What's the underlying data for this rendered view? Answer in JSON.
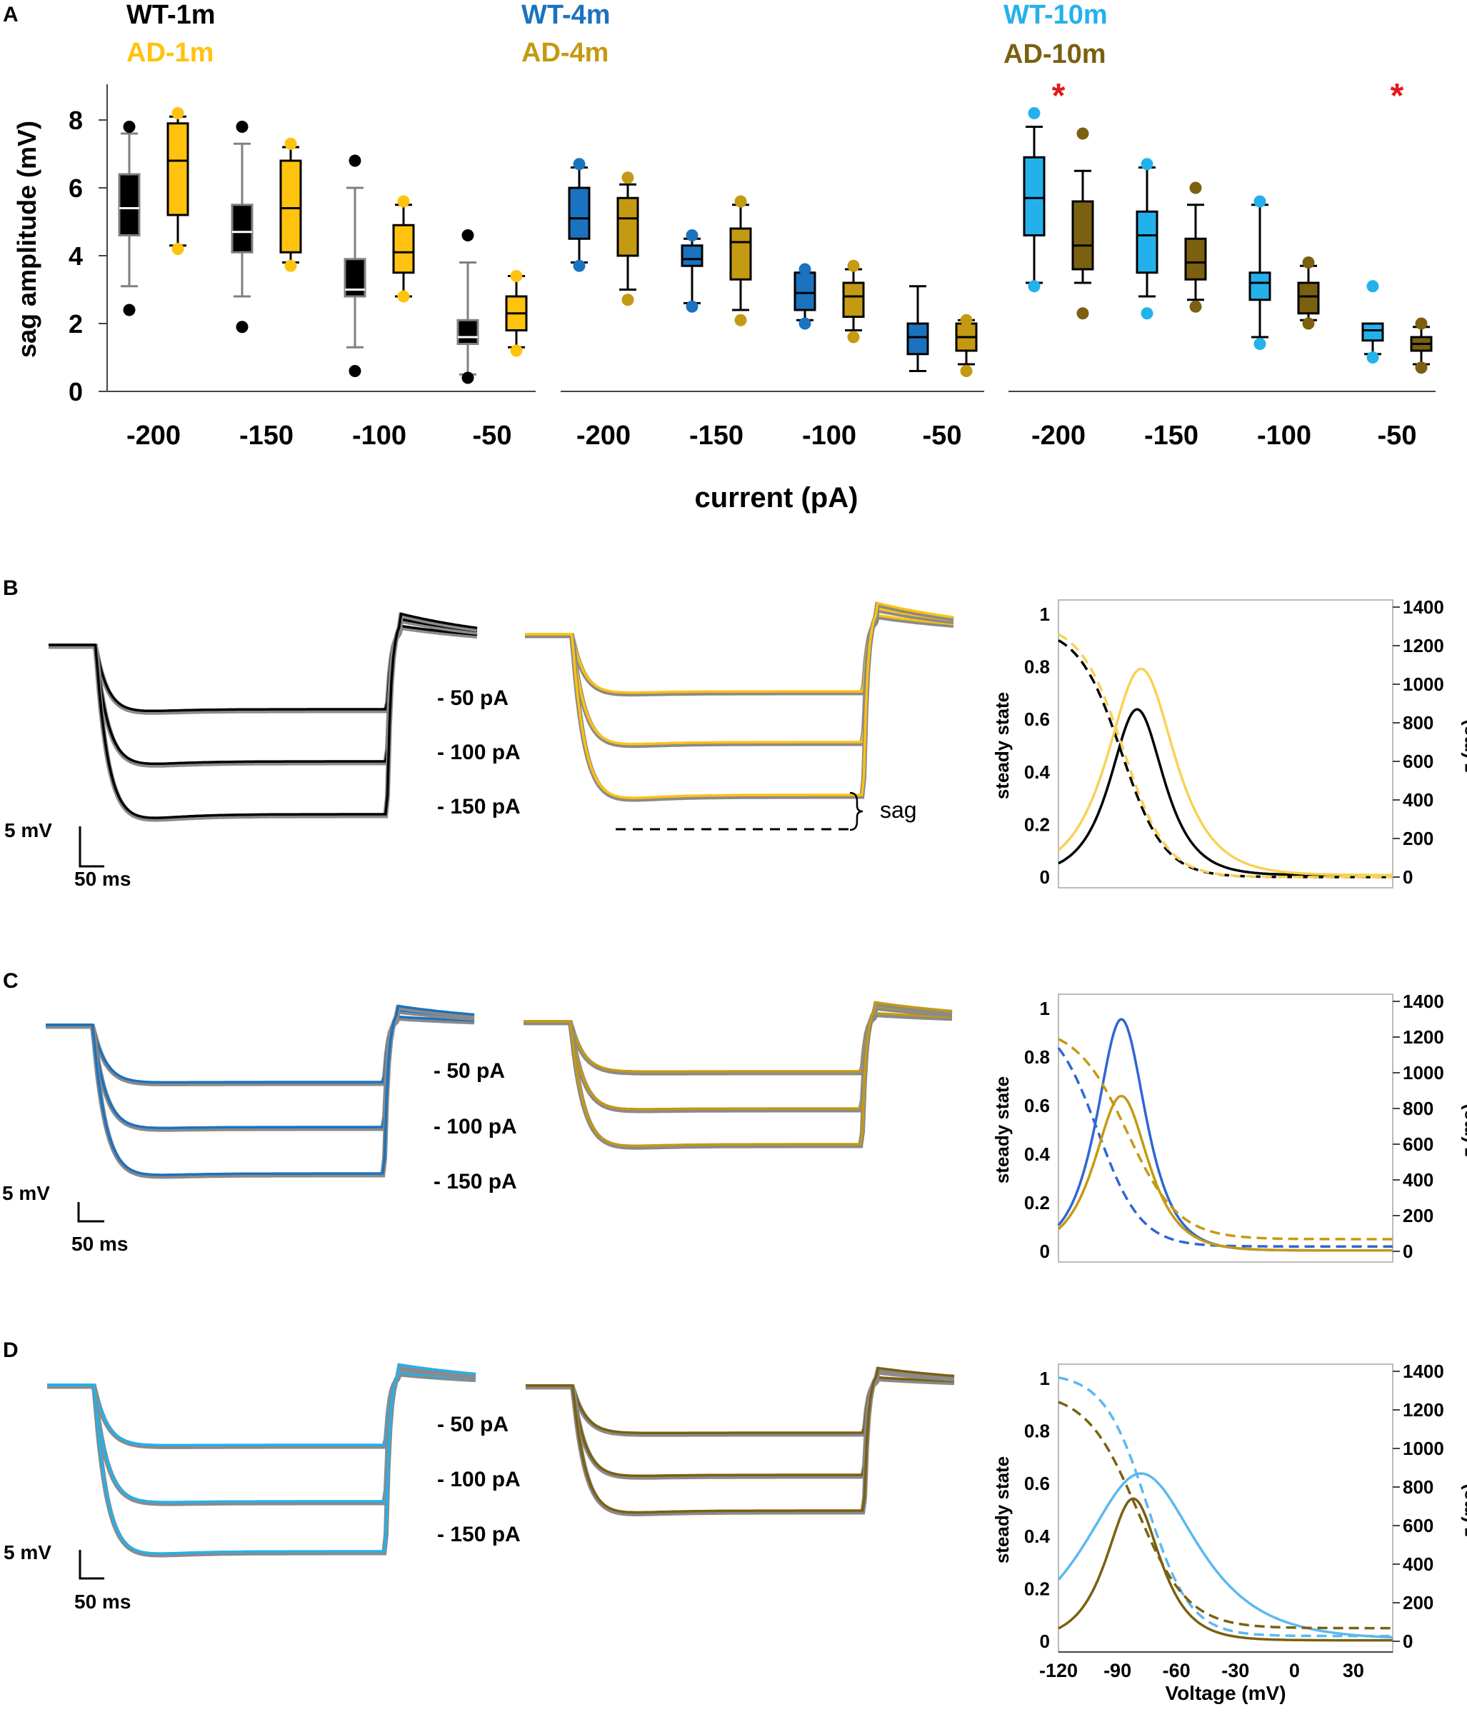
{
  "colors": {
    "wt1": "#000000",
    "ad1": "#FFC20E",
    "wt4": "#1B72BF",
    "ad4": "#C49A12",
    "wt10": "#23B1EC",
    "ad10": "#7A6010",
    "wt1_box": "#808080",
    "gray_trace": "#8A8A8A",
    "star": "#E41A1C",
    "wt4_fit": "#2E66D4",
    "wt10_fit": "#5BB8F0"
  },
  "panel_letters": [
    "A",
    "B",
    "C",
    "D"
  ],
  "legend": {
    "wt1": "WT-1m",
    "ad1": "AD-1m",
    "wt4": "WT-4m",
    "ad4": "AD-4m",
    "wt10": "WT-10m",
    "ad10": "AD-10m"
  },
  "star_symbol": "*",
  "chart_data": [
    {
      "type": "box",
      "panel": "A",
      "ylabel": "sag amplitude (mV)",
      "xlabel": "current (pA)",
      "ylim": [
        0,
        9
      ],
      "yticks": [
        0,
        2,
        4,
        6,
        8
      ],
      "categories": [
        "-200",
        "-150",
        "-100",
        "-50"
      ],
      "significance_marks": [
        {
          "group": "10m",
          "category": "-200",
          "symbol": "*"
        },
        {
          "group": "10m",
          "category": "-50",
          "symbol": "*"
        }
      ],
      "groups": [
        {
          "name": "1m",
          "series": [
            {
              "name": "WT-1m",
              "color": "wt1",
              "box_color": "wt1_box",
              "data": [
                {
                  "wmin": 3.1,
                  "q1": 4.6,
                  "median": 5.4,
                  "q3": 6.4,
                  "wmax": 7.6,
                  "outliers": [
                    2.4,
                    7.8
                  ]
                },
                {
                  "wmin": 2.8,
                  "q1": 4.1,
                  "median": 4.7,
                  "q3": 5.5,
                  "wmax": 7.3,
                  "outliers": [
                    1.9,
                    7.8
                  ]
                },
                {
                  "wmin": 1.3,
                  "q1": 2.8,
                  "median": 3.0,
                  "q3": 3.9,
                  "wmax": 6.0,
                  "outliers": [
                    0.6,
                    6.8
                  ]
                },
                {
                  "wmin": 0.5,
                  "q1": 1.4,
                  "median": 1.6,
                  "q3": 2.1,
                  "wmax": 3.8,
                  "outliers": [
                    0.4,
                    4.6
                  ]
                }
              ]
            },
            {
              "name": "AD-1m",
              "color": "ad1",
              "data": [
                {
                  "wmin": 4.3,
                  "q1": 5.2,
                  "median": 6.8,
                  "q3": 7.9,
                  "wmax": 8.1,
                  "outliers": [
                    4.2,
                    8.2
                  ]
                },
                {
                  "wmin": 3.8,
                  "q1": 4.1,
                  "median": 5.4,
                  "q3": 6.8,
                  "wmax": 7.2,
                  "outliers": [
                    3.7,
                    7.3
                  ]
                },
                {
                  "wmin": 2.8,
                  "q1": 3.5,
                  "median": 4.1,
                  "q3": 4.9,
                  "wmax": 5.5,
                  "outliers": [
                    2.8,
                    5.6
                  ]
                },
                {
                  "wmin": 1.3,
                  "q1": 1.8,
                  "median": 2.3,
                  "q3": 2.8,
                  "wmax": 3.4,
                  "outliers": [
                    1.2,
                    3.4
                  ]
                }
              ]
            }
          ]
        },
        {
          "name": "4m",
          "series": [
            {
              "name": "WT-4m",
              "color": "wt4",
              "data": [
                {
                  "wmin": 3.8,
                  "q1": 4.5,
                  "median": 5.1,
                  "q3": 6.0,
                  "wmax": 6.6,
                  "outliers": [
                    3.7,
                    6.7
                  ]
                },
                {
                  "wmin": 2.6,
                  "q1": 3.7,
                  "median": 3.9,
                  "q3": 4.3,
                  "wmax": 4.5,
                  "outliers": [
                    2.5,
                    4.6
                  ]
                },
                {
                  "wmin": 2.1,
                  "q1": 2.4,
                  "median": 2.9,
                  "q3": 3.5,
                  "wmax": 3.5,
                  "outliers": [
                    2.0,
                    3.6
                  ]
                },
                {
                  "wmin": 0.6,
                  "q1": 1.1,
                  "median": 1.6,
                  "q3": 2.0,
                  "wmax": 3.1,
                  "outliers": []
                }
              ]
            },
            {
              "name": "AD-4m",
              "color": "ad4",
              "data": [
                {
                  "wmin": 3.0,
                  "q1": 4.0,
                  "median": 5.1,
                  "q3": 5.7,
                  "wmax": 6.1,
                  "outliers": [
                    2.7,
                    6.3
                  ]
                },
                {
                  "wmin": 2.4,
                  "q1": 3.3,
                  "median": 4.4,
                  "q3": 4.8,
                  "wmax": 5.5,
                  "outliers": [
                    2.1,
                    5.6
                  ]
                },
                {
                  "wmin": 1.8,
                  "q1": 2.2,
                  "median": 2.8,
                  "q3": 3.2,
                  "wmax": 3.6,
                  "outliers": [
                    1.6,
                    3.7
                  ]
                },
                {
                  "wmin": 0.8,
                  "q1": 1.2,
                  "median": 1.6,
                  "q3": 2.0,
                  "wmax": 2.1,
                  "outliers": [
                    0.6,
                    2.1
                  ]
                }
              ]
            }
          ]
        },
        {
          "name": "10m",
          "series": [
            {
              "name": "WT-10m",
              "color": "wt10",
              "data": [
                {
                  "wmin": 3.2,
                  "q1": 4.6,
                  "median": 5.7,
                  "q3": 6.9,
                  "wmax": 7.8,
                  "outliers": [
                    3.1,
                    8.2
                  ]
                },
                {
                  "wmin": 2.8,
                  "q1": 3.5,
                  "median": 4.6,
                  "q3": 5.3,
                  "wmax": 6.6,
                  "outliers": [
                    2.3,
                    6.7
                  ]
                },
                {
                  "wmin": 1.6,
                  "q1": 2.7,
                  "median": 3.2,
                  "q3": 3.5,
                  "wmax": 5.5,
                  "outliers": [
                    1.4,
                    5.6
                  ]
                },
                {
                  "wmin": 1.1,
                  "q1": 1.5,
                  "median": 1.8,
                  "q3": 2.0,
                  "wmax": 2.0,
                  "outliers": [
                    1.0,
                    3.1
                  ]
                }
              ]
            },
            {
              "name": "AD-10m",
              "color": "ad10",
              "data": [
                {
                  "wmin": 3.2,
                  "q1": 3.6,
                  "median": 4.3,
                  "q3": 5.6,
                  "wmax": 6.5,
                  "outliers": [
                    2.3,
                    7.6
                  ]
                },
                {
                  "wmin": 2.7,
                  "q1": 3.3,
                  "median": 3.8,
                  "q3": 4.5,
                  "wmax": 5.5,
                  "outliers": [
                    2.5,
                    6.0
                  ]
                },
                {
                  "wmin": 2.1,
                  "q1": 2.3,
                  "median": 2.8,
                  "q3": 3.2,
                  "wmax": 3.7,
                  "outliers": [
                    2.0,
                    3.8
                  ]
                },
                {
                  "wmin": 0.8,
                  "q1": 1.2,
                  "median": 1.4,
                  "q3": 1.6,
                  "wmax": 1.9,
                  "outliers": [
                    0.7,
                    2.0
                  ]
                }
              ]
            }
          ]
        }
      ]
    },
    {
      "type": "line",
      "panel": "B",
      "description_labels": [
        "- 50 pA",
        "- 100 pA",
        "- 150 pA"
      ],
      "scale_bar": {
        "y": "5 mV",
        "x": "50 ms"
      },
      "sag_label": "sag",
      "trace_colors": [
        "wt1",
        "ad1"
      ],
      "gating": {
        "left_axis_label": "steady state",
        "right_axis_label": "τ (ms)",
        "left_ticks": [
          "0",
          "0.2",
          "0.4",
          "0.6",
          "0.8",
          "1"
        ],
        "right_ticks": [
          "0",
          "200",
          "400",
          "600",
          "800",
          "1000",
          "1200",
          "1400"
        ],
        "xlim": [
          -120,
          50
        ],
        "tau_peaks_ms": [
          {
            "series": "WT-1m",
            "vmax": -80,
            "tau": 870
          },
          {
            "series": "AD-1m",
            "vmax": -78,
            "tau": 1080
          }
        ]
      }
    },
    {
      "type": "line",
      "panel": "C",
      "description_labels": [
        "- 50 pA",
        "- 100 pA",
        "- 150 pA"
      ],
      "scale_bar": {
        "y": "5 mV",
        "x": "50 ms"
      },
      "trace_colors": [
        "wt4",
        "ad4"
      ],
      "gating": {
        "left_axis_label": "steady state",
        "right_axis_label": "τ (ms)",
        "left_ticks": [
          "0",
          "0.2",
          "0.4",
          "0.6",
          "0.8",
          "1"
        ],
        "right_ticks": [
          "0",
          "200",
          "400",
          "600",
          "800",
          "1000",
          "1200",
          "1400"
        ],
        "xlim": [
          -120,
          50
        ],
        "tau_peaks_ms": [
          {
            "series": "WT-4m",
            "vmax": -88,
            "tau": 1300
          },
          {
            "series": "AD-4m",
            "vmax": -88,
            "tau": 870
          }
        ]
      }
    },
    {
      "type": "line",
      "panel": "D",
      "description_labels": [
        "- 50 pA",
        "- 100 pA",
        "- 150 pA"
      ],
      "scale_bar": {
        "y": "5 mV",
        "x": "50 ms"
      },
      "trace_colors": [
        "wt10",
        "ad10"
      ],
      "gating": {
        "left_axis_label": "steady state",
        "right_axis_label": "τ (ms)",
        "xlabel": "Voltage (mV)",
        "left_ticks": [
          "0",
          "0.2",
          "0.4",
          "0.6",
          "0.8",
          "1"
        ],
        "right_ticks": [
          "0",
          "200",
          "400",
          "600",
          "800",
          "1000",
          "1200",
          "1400"
        ],
        "x_ticks": [
          "-120",
          "-90",
          "-60",
          "-30",
          "0",
          "30"
        ],
        "xlim": [
          -120,
          50
        ],
        "tau_peaks_ms": [
          {
            "series": "WT-10m",
            "vmax": -78,
            "tau": 870
          },
          {
            "series": "AD-10m",
            "vmax": -82,
            "tau": 740
          }
        ]
      }
    }
  ]
}
